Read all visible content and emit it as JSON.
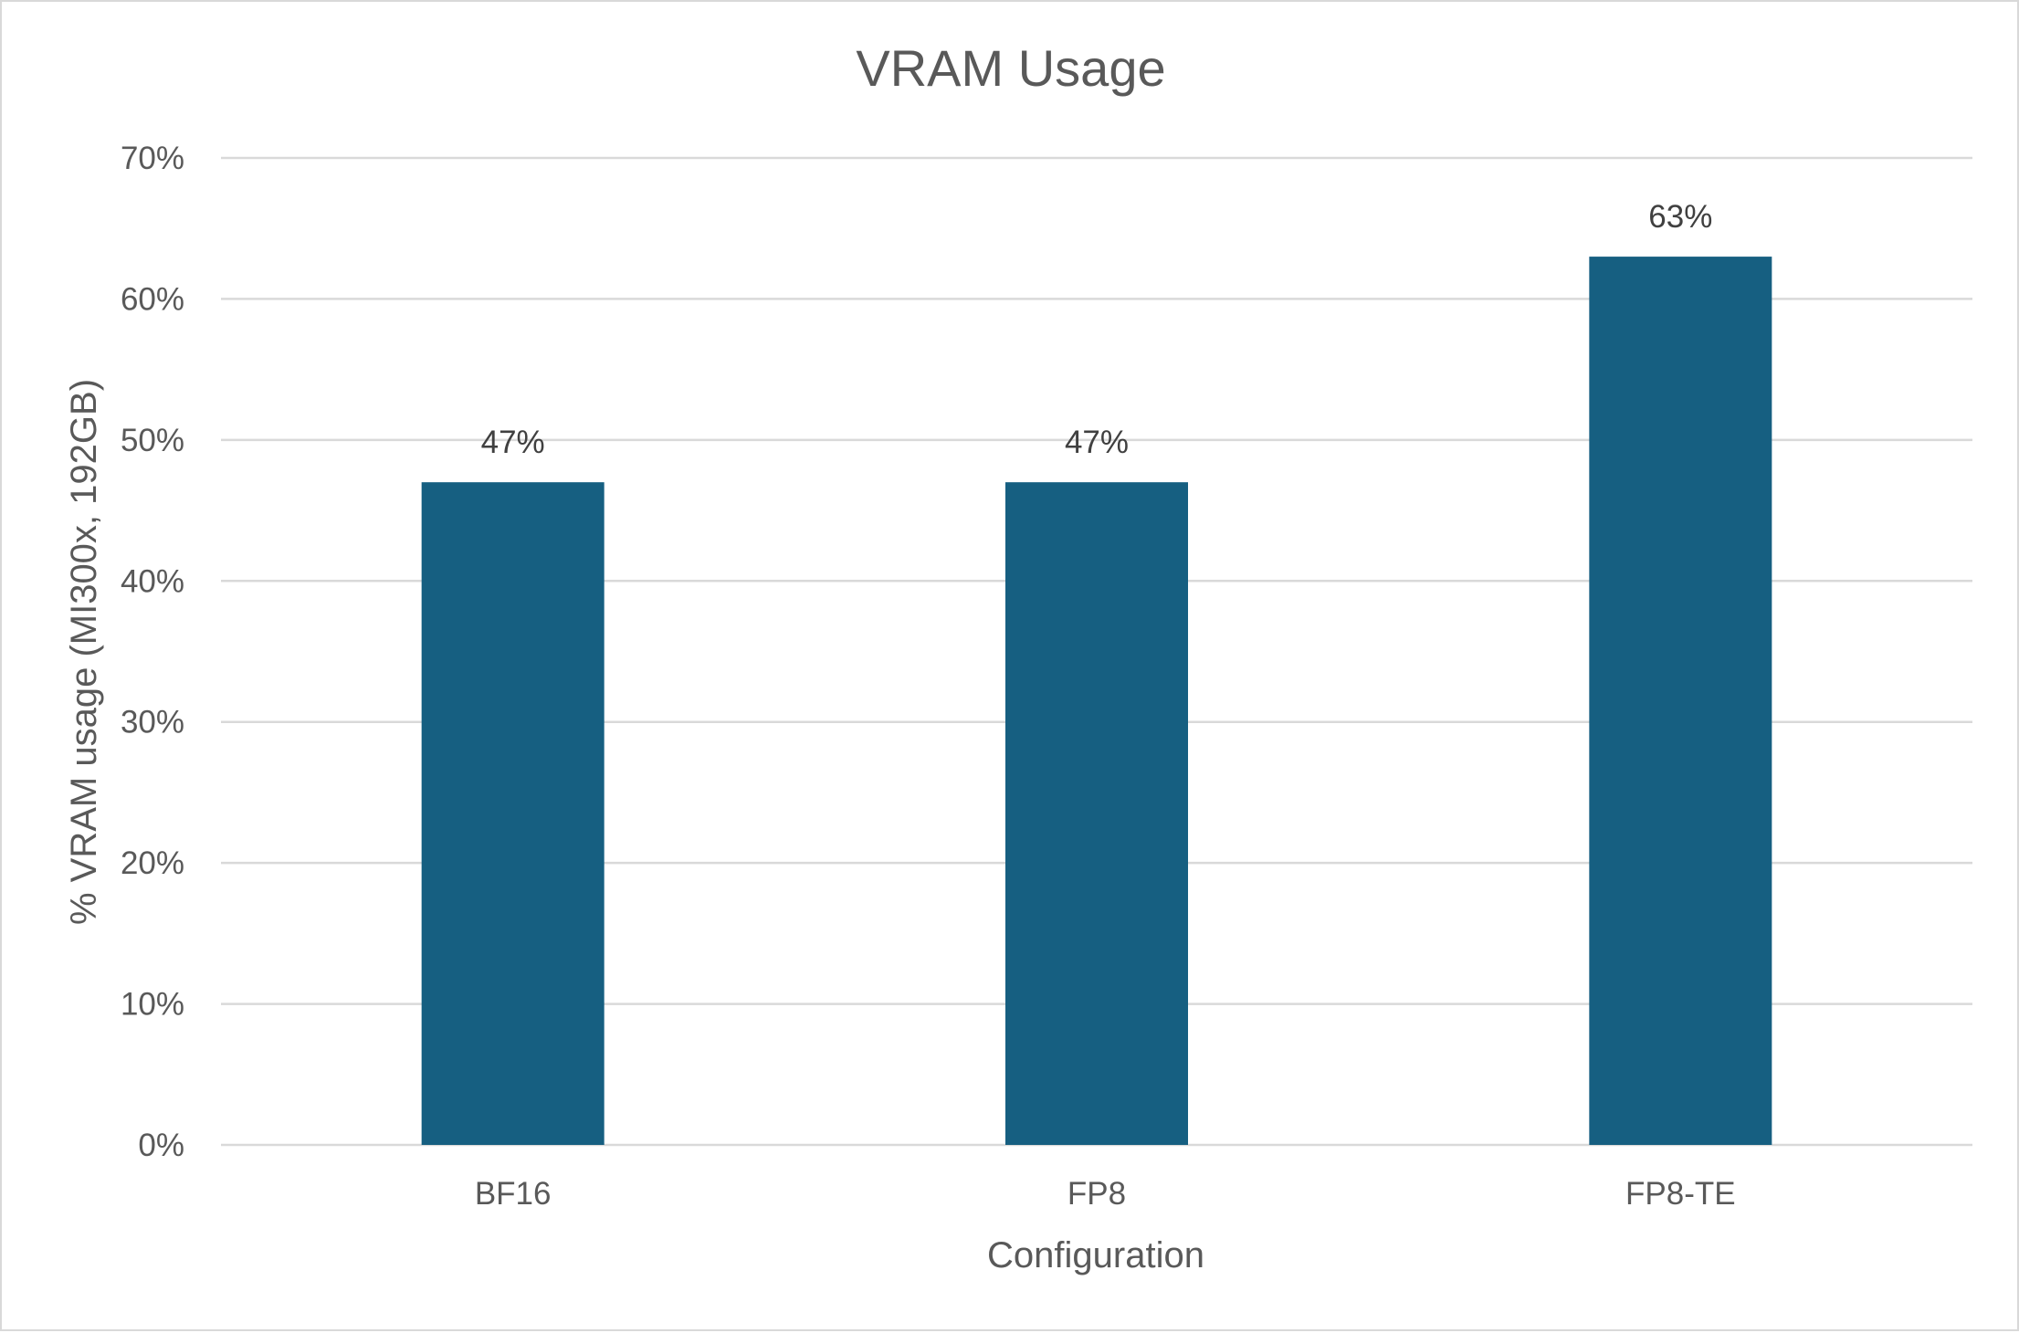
{
  "chart_data": {
    "type": "bar",
    "title": "VRAM Usage",
    "xlabel": "Configuration",
    "ylabel": "% VRAM usage (MI300x, 192GB)",
    "categories": [
      "BF16",
      "FP8",
      "FP8-TE"
    ],
    "values": [
      47,
      47,
      63
    ],
    "data_labels": [
      "47%",
      "47%",
      "63%"
    ],
    "ylim": [
      0,
      70
    ],
    "yticks": [
      0,
      10,
      20,
      30,
      40,
      50,
      60,
      70
    ],
    "ytick_labels": [
      "0%",
      "10%",
      "20%",
      "30%",
      "40%",
      "50%",
      "60%",
      "70%"
    ],
    "grid": true,
    "legend": "none",
    "bar_color": "#165F81"
  }
}
